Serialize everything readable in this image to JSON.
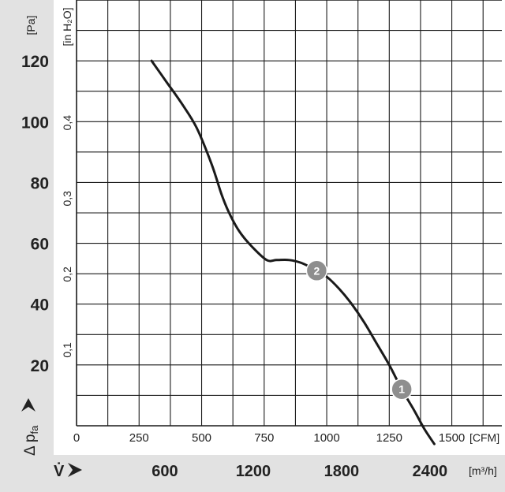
{
  "chart_data": {
    "type": "line",
    "title": "",
    "series": [
      {
        "points_cfm_pa": [
          [
            300,
            120
          ],
          [
            360,
            113
          ],
          [
            420,
            106
          ],
          [
            480,
            98
          ],
          [
            540,
            86
          ],
          [
            580,
            76
          ],
          [
            610,
            70
          ],
          [
            650,
            64
          ],
          [
            700,
            59
          ],
          [
            760,
            54.5
          ],
          [
            800,
            54.5
          ],
          [
            850,
            54.5
          ],
          [
            900,
            53.5
          ],
          [
            950,
            51.5
          ],
          [
            1000,
            49
          ],
          [
            1050,
            45
          ],
          [
            1100,
            40
          ],
          [
            1150,
            34
          ],
          [
            1200,
            27
          ],
          [
            1250,
            20
          ],
          [
            1300,
            12
          ],
          [
            1350,
            5
          ],
          [
            1390,
            -1
          ],
          [
            1430,
            -6
          ]
        ]
      }
    ],
    "x_axis_cfm": {
      "label": "[CFM]",
      "ticks": [
        "0",
        "250",
        "500",
        "750",
        "1000",
        "1250",
        "1500"
      ],
      "range": [
        0,
        1700
      ]
    },
    "x_axis_m3h": {
      "label": "[m³/h]",
      "ticks": [
        "600",
        "1200",
        "1800",
        "2400"
      ]
    },
    "y_axis_pa": {
      "label": "[Pa]",
      "ticks": [
        "20",
        "40",
        "60",
        "80",
        "100",
        "120"
      ],
      "range": [
        0,
        140
      ]
    },
    "y_axis_inh2o": {
      "label": "[in H₂O]",
      "ticks": [
        "0,1",
        "0,2",
        "0,3",
        "0,4"
      ]
    },
    "y_title": "Δ p",
    "y_title_sub": "fa",
    "x_title": "V̇",
    "markers": [
      {
        "label": "1",
        "cfm": 1300,
        "pa": 12
      },
      {
        "label": "2",
        "cfm": 960,
        "pa": 51
      }
    ],
    "grid": true,
    "colors": {
      "curve": "#1a1a1a",
      "grid": "#1a1a1a",
      "band": "#e2e2e2",
      "marker": "#8e8e8e"
    }
  }
}
